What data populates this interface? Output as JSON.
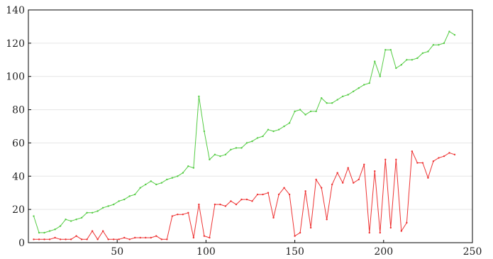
{
  "chart_data": {
    "type": "line",
    "title": "",
    "xlabel": "",
    "ylabel": "",
    "xlim": [
      0,
      250
    ],
    "ylim": [
      0,
      140
    ],
    "grid": "horizontal",
    "xticks": [
      50,
      100,
      150,
      200,
      250
    ],
    "yticks": [
      0,
      20,
      40,
      60,
      80,
      100,
      120,
      140
    ],
    "xtick_labels": [
      "50",
      "100",
      "150",
      "200",
      "250"
    ],
    "ytick_labels": [
      "0",
      "20",
      "40",
      "60",
      "80",
      "100",
      "120",
      "140"
    ],
    "series": [
      {
        "color": "#55cc44",
        "x": [
          3,
          6,
          9,
          12,
          15,
          18,
          21,
          24,
          27,
          30,
          33,
          36,
          39,
          42,
          45,
          48,
          51,
          54,
          57,
          60,
          63,
          66,
          69,
          72,
          75,
          78,
          81,
          84,
          87,
          90,
          93,
          96,
          99,
          102,
          105,
          108,
          111,
          114,
          117,
          120,
          123,
          126,
          129,
          132,
          135,
          138,
          141,
          144,
          147,
          150,
          153,
          156,
          159,
          162,
          165,
          168,
          171,
          174,
          177,
          180,
          183,
          186,
          189,
          192,
          195,
          198,
          201,
          204,
          207,
          210,
          213,
          216,
          219,
          222,
          225,
          228,
          231,
          234,
          237,
          240
        ],
        "values": [
          16,
          6,
          6,
          7,
          8,
          10,
          14,
          13,
          14,
          15,
          18,
          18,
          19,
          21,
          22,
          23,
          25,
          26,
          28,
          29,
          33,
          35,
          37,
          35,
          36,
          38,
          39,
          40,
          42,
          46,
          45,
          88,
          67,
          50,
          53,
          52,
          53,
          56,
          57,
          57,
          60,
          61,
          63,
          64,
          68,
          67,
          68,
          70,
          72,
          79,
          80,
          77,
          79,
          79,
          87,
          84,
          84,
          86,
          88,
          89,
          91,
          93,
          95,
          96,
          109,
          100,
          116,
          116,
          105,
          107,
          110,
          110,
          111,
          114,
          115,
          119,
          119,
          120,
          127,
          125
        ]
      },
      {
        "color": "#ee3333",
        "x": [
          3,
          6,
          9,
          12,
          15,
          18,
          21,
          24,
          27,
          30,
          33,
          36,
          39,
          42,
          45,
          48,
          51,
          54,
          57,
          60,
          63,
          66,
          69,
          72,
          75,
          78,
          81,
          84,
          87,
          90,
          93,
          96,
          99,
          102,
          105,
          108,
          111,
          114,
          117,
          120,
          123,
          126,
          129,
          132,
          135,
          138,
          141,
          144,
          147,
          150,
          153,
          156,
          159,
          162,
          165,
          168,
          171,
          174,
          177,
          180,
          183,
          186,
          189,
          192,
          195,
          198,
          201,
          204,
          207,
          210,
          213,
          216,
          219,
          222,
          225,
          228,
          231,
          234,
          237,
          240
        ],
        "values": [
          2,
          2,
          2,
          2,
          3,
          2,
          2,
          2,
          4,
          2,
          2,
          7,
          2,
          7,
          2,
          2,
          2,
          3,
          2,
          3,
          3,
          3,
          3,
          4,
          2,
          2,
          16,
          17,
          17,
          18,
          3,
          23,
          4,
          3,
          23,
          23,
          22,
          25,
          23,
          26,
          26,
          25,
          29,
          29,
          30,
          15,
          29,
          33,
          29,
          4,
          6,
          31,
          9,
          38,
          33,
          14,
          35,
          42,
          36,
          45,
          36,
          38,
          47,
          6,
          43,
          6,
          50,
          9,
          50,
          7,
          12,
          55,
          48,
          48,
          39,
          49,
          51,
          52,
          54,
          53
        ]
      }
    ]
  }
}
